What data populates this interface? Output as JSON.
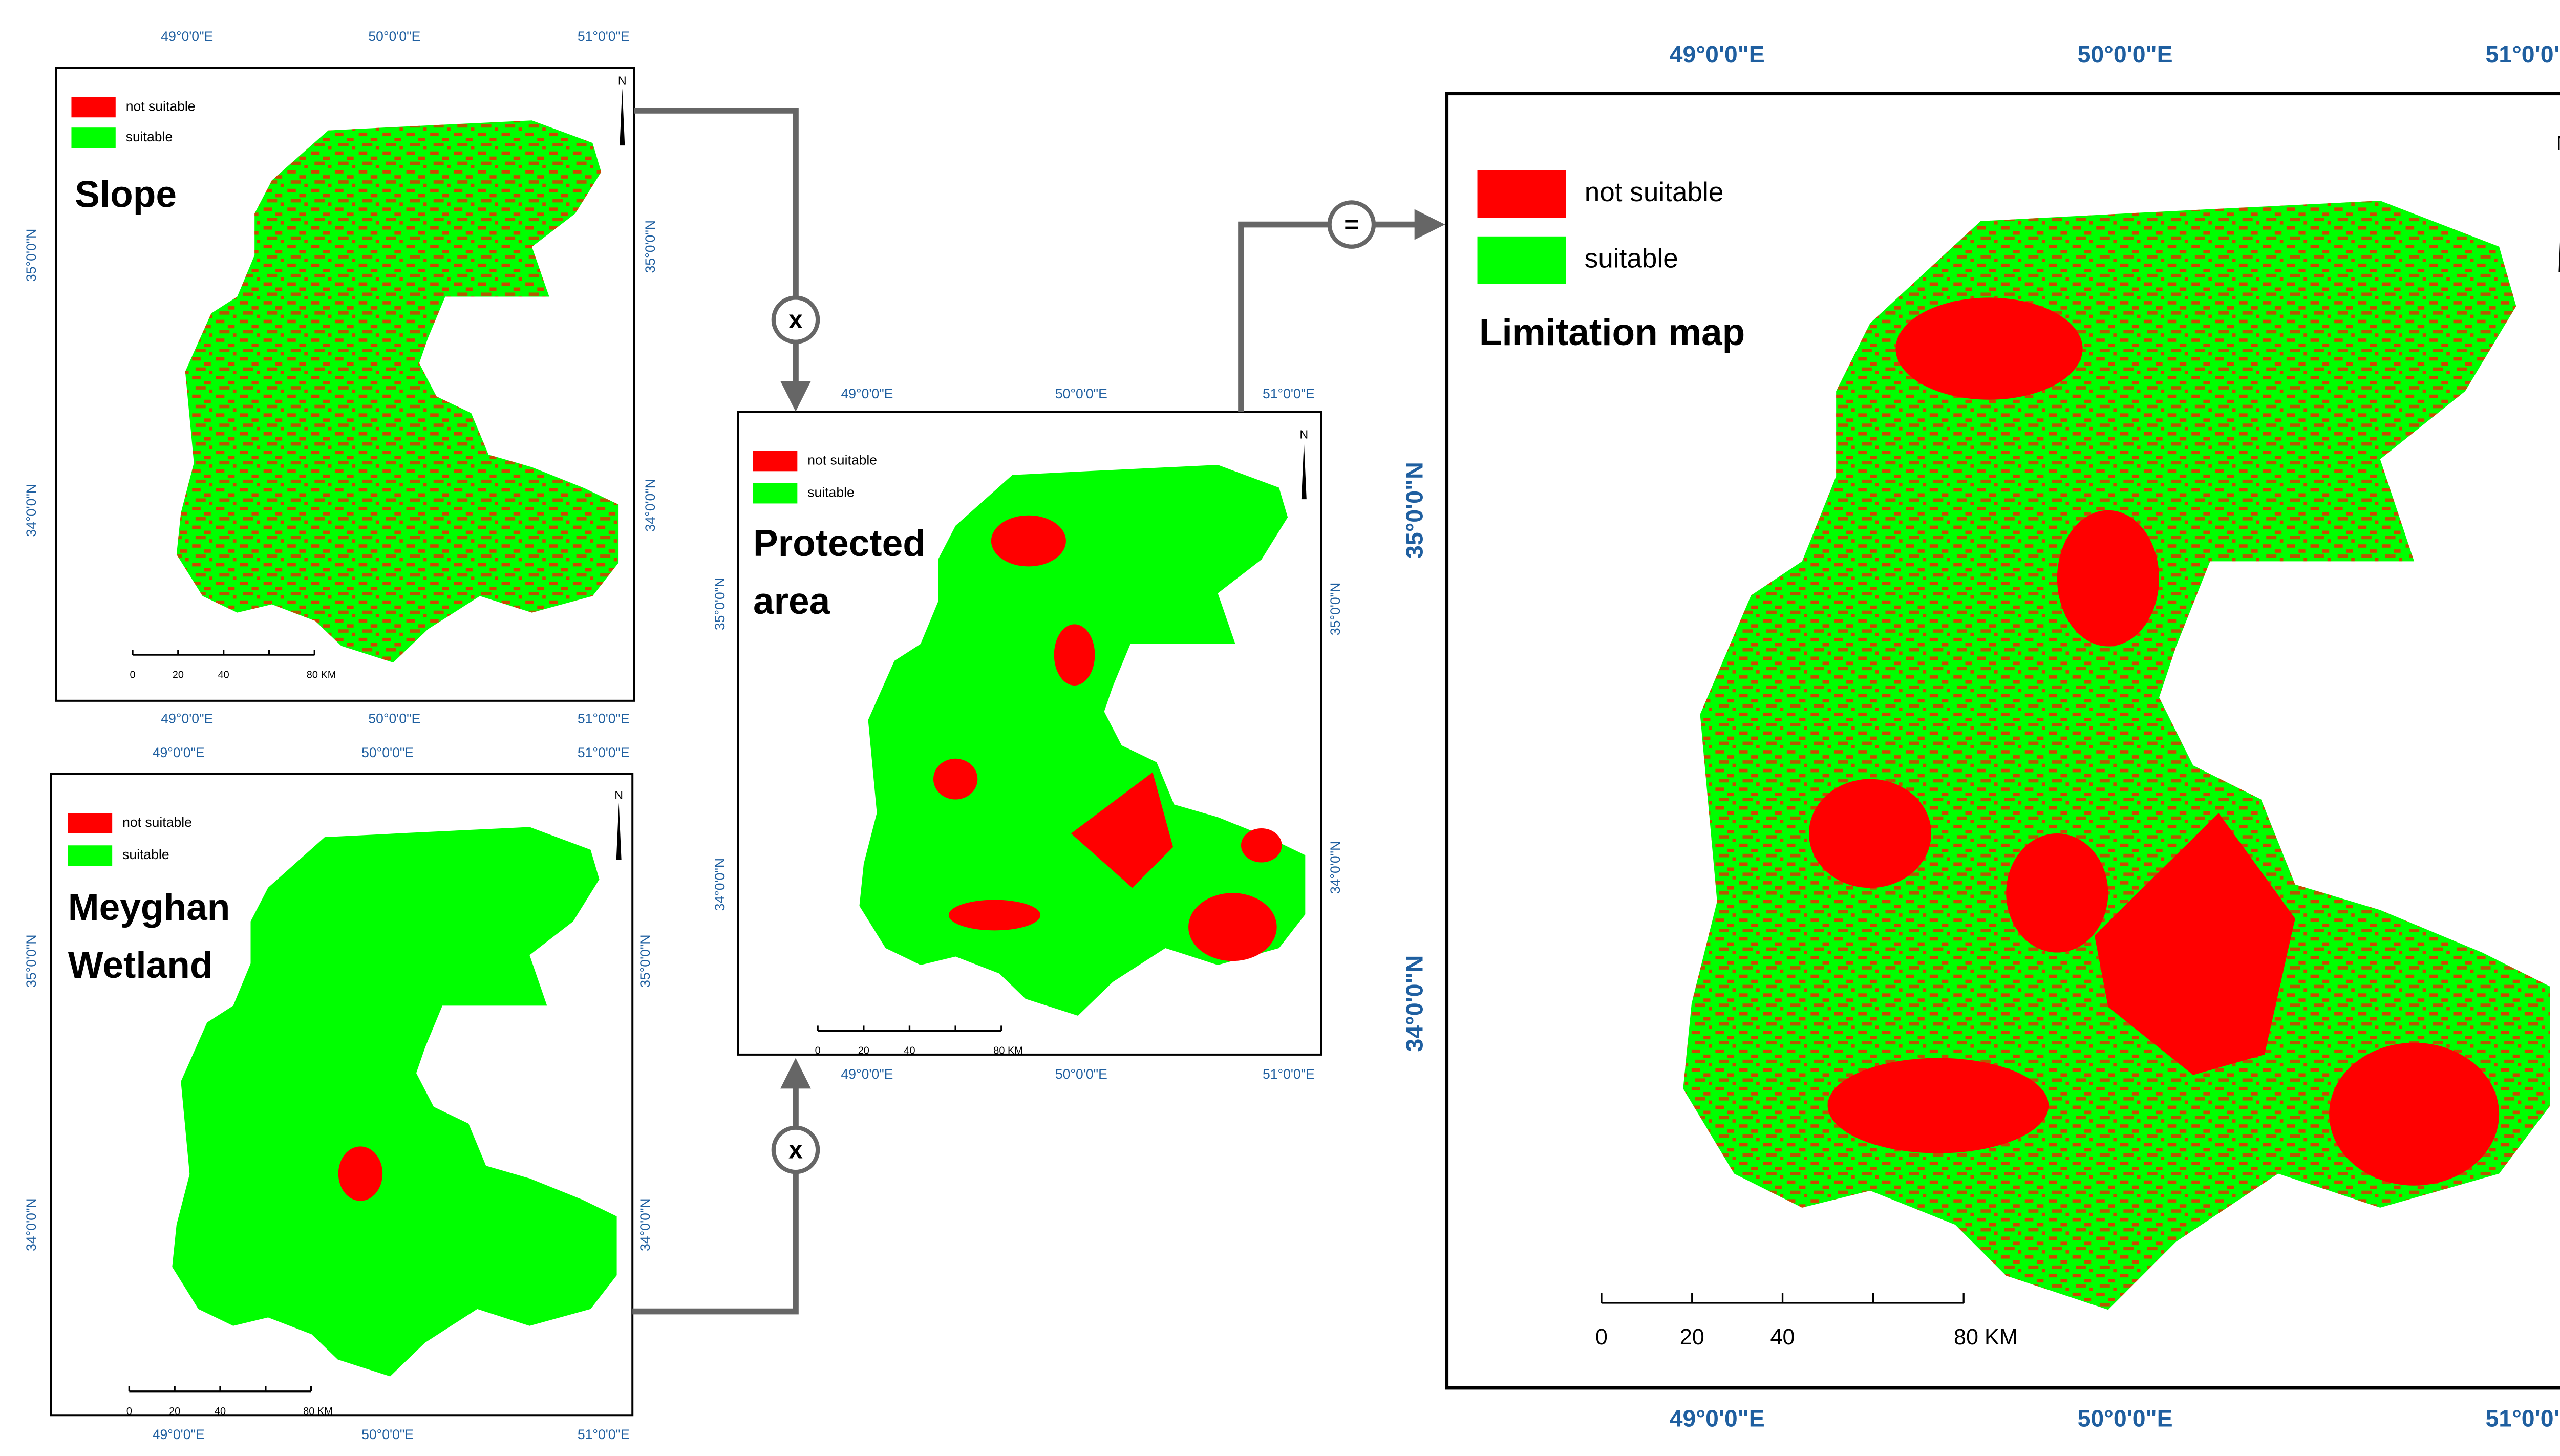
{
  "panels": [
    {
      "title_lines": [
        "Slope"
      ],
      "legend": [
        "not suitable",
        "suitable"
      ],
      "lon_labels": [
        "49°0'0\"E",
        "50°0'0\"E",
        "51°0'0\"E"
      ],
      "lat_labels": [
        "35°0'0\"N",
        "34°0'0\"N"
      ],
      "scale_labels": [
        "0",
        "20",
        "40",
        "80 KM"
      ],
      "north": "N"
    },
    {
      "title_lines": [
        "Meyghan",
        "Wetland"
      ],
      "legend": [
        "not suitable",
        "suitable"
      ],
      "lon_labels": [
        "49°0'0\"E",
        "50°0'0\"E",
        "51°0'0\"E"
      ],
      "lat_labels": [
        "35°0'0\"N",
        "34°0'0\"N"
      ],
      "scale_labels": [
        "0",
        "20",
        "40",
        "80 KM"
      ],
      "north": "N"
    },
    {
      "title_lines": [
        "Protected",
        "area"
      ],
      "legend": [
        "not suitable",
        "suitable"
      ],
      "lon_labels": [
        "49°0'0\"E",
        "50°0'0\"E",
        "51°0'0\"E"
      ],
      "lat_labels": [
        "35°0'0\"N",
        "34°0'0\"N"
      ],
      "scale_labels": [
        "0",
        "20",
        "40",
        "80 KM"
      ],
      "north": "N"
    },
    {
      "title_lines": [
        "Limitation map"
      ],
      "legend": [
        "not suitable",
        "suitable"
      ],
      "lon_labels": [
        "49°0'0\"E",
        "50°0'0\"E",
        "51°0'0\"E"
      ],
      "lat_labels": [
        "35°0'0\"N",
        "34°0'0\"N"
      ],
      "scale_labels": [
        "0",
        "20",
        "40",
        "80 KM"
      ],
      "north": "N"
    }
  ],
  "operators": [
    "x",
    "x",
    "="
  ]
}
